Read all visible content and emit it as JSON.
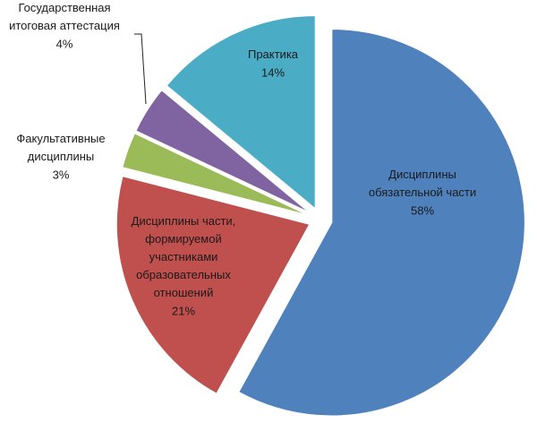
{
  "chart_data": {
    "type": "pie",
    "categories": [
      "Дисциплины\nобязательной части",
      "Дисциплины части,\nформируемой\nучастниками\nобразовательных\nотношений",
      "Факультативные\nдисциплины",
      "Государственная\nитоговая аттестация",
      "Практика"
    ],
    "values": [
      58,
      21,
      3,
      4,
      14
    ],
    "value_labels": [
      "58%",
      "21%",
      "3%",
      "4%",
      "14%"
    ],
    "colors": [
      "#4f81bd",
      "#c0504d",
      "#9bbb59",
      "#8064a2",
      "#4bacc6"
    ]
  }
}
